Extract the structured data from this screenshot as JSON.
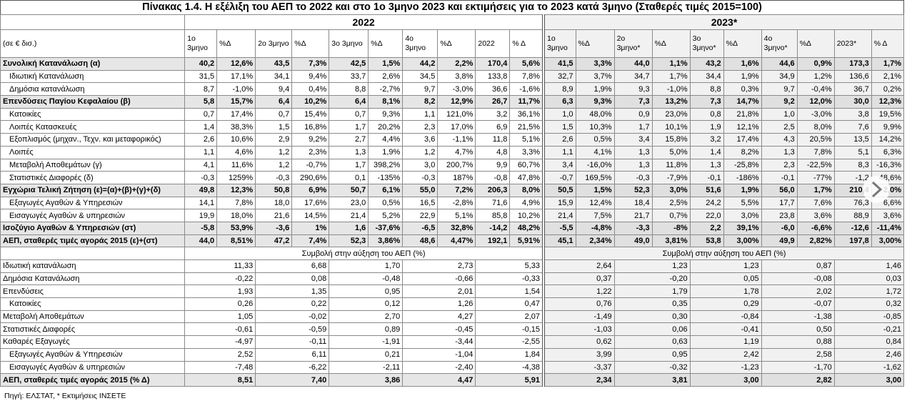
{
  "title": "Πίνακας 1.4. Η εξέλιξη του ΑΕΠ το 2022 και στο 1ο 3μηνο 2023 και εκτιμήσεις για το 2023 κατά 3μηνο (Σταθερές τιμές 2015=100)",
  "years": [
    "2022",
    "2023*"
  ],
  "unit": "(σε € δισ.)",
  "columns": [
    "1ο 3μηνο",
    "%Δ",
    "2ο 3μηνο",
    "%Δ",
    "3ο 3μηνο",
    "%Δ",
    "4ο 3μηνο",
    "%Δ",
    "2022",
    "% Δ",
    "1ο 3μηνο",
    "%Δ",
    "2ο 3μηνο*",
    "%Δ",
    "3ο 3μηνο*",
    "%Δ",
    "4ο 3μηνο*",
    "%Δ",
    "2023*",
    "% Δ"
  ],
  "rows": [
    {
      "label": "Συνολική Κατανάλωση (α)",
      "values": [
        "40,2",
        "12,6%",
        "43,5",
        "7,3%",
        "42,5",
        "1,5%",
        "44,2",
        "2,2%",
        "170,4",
        "5,6%",
        "41,5",
        "3,3%",
        "44,0",
        "1,1%",
        "43,2",
        "1,6%",
        "44,6",
        "0,9%",
        "173,3",
        "1,7%"
      ]
    },
    {
      "label": "Ιδιωτική Κατανάλωση",
      "values": [
        "31,5",
        "17,1%",
        "34,1",
        "9,4%",
        "33,7",
        "2,6%",
        "34,5",
        "3,8%",
        "133,8",
        "7,8%",
        "32,7",
        "3,7%",
        "34,7",
        "1,7%",
        "34,4",
        "1,9%",
        "34,9",
        "1,2%",
        "136,6",
        "2,1%"
      ]
    },
    {
      "label": "Δημόσια κατανάλωση",
      "values": [
        "8,7",
        "-1,0%",
        "9,4",
        "0,4%",
        "8,8",
        "-2,7%",
        "9,7",
        "-3,0%",
        "36,6",
        "-1,6%",
        "8,9",
        "1,9%",
        "9,3",
        "-1,0%",
        "8,8",
        "0,3%",
        "9,7",
        "-0,4%",
        "36,7",
        "0,2%"
      ]
    },
    {
      "label": "Επενδύσεις Παγίου Κεφαλαίου (β)",
      "values": [
        "5,8",
        "15,7%",
        "6,4",
        "10,2%",
        "6,4",
        "8,1%",
        "8,2",
        "12,9%",
        "26,7",
        "11,7%",
        "6,3",
        "9,3%",
        "7,3",
        "13,2%",
        "7,3",
        "14,7%",
        "9,2",
        "12,0%",
        "30,0",
        "12,3%"
      ]
    },
    {
      "label": "Κατοικίες",
      "values": [
        "0,7",
        "17,4%",
        "0,7",
        "15,4%",
        "0,7",
        "9,3%",
        "1,1",
        "121,0%",
        "3,2",
        "36,1%",
        "1,0",
        "48,0%",
        "0,9",
        "23,0%",
        "0,8",
        "21,8%",
        "1,0",
        "-3,0%",
        "3,8",
        "19,5%"
      ]
    },
    {
      "label": "Λοιπές Κατασκευές",
      "values": [
        "1,4",
        "38,3%",
        "1,5",
        "16,8%",
        "1,7",
        "20,2%",
        "2,3",
        "17,0%",
        "6,9",
        "21,5%",
        "1,5",
        "10,3%",
        "1,7",
        "10,1%",
        "1,9",
        "12,1%",
        "2,5",
        "8,0%",
        "7,6",
        "9,9%"
      ]
    },
    {
      "label": "Εξοπλισμός (μηχαν., Τεχν. και μεταφορικός)",
      "values": [
        "2,6",
        "10,6%",
        "2,9",
        "9,2%",
        "2,7",
        "4,4%",
        "3,6",
        "-1,1%",
        "11,8",
        "5,1%",
        "2,6",
        "0,5%",
        "3,4",
        "15,8%",
        "3,2",
        "17,4%",
        "4,3",
        "20,5%",
        "13,5",
        "14,2%"
      ]
    },
    {
      "label": "Λοιπές",
      "values": [
        "1,1",
        "4,6%",
        "1,2",
        "2,3%",
        "1,3",
        "1,9%",
        "1,2",
        "4,7%",
        "4,8",
        "3,3%",
        "1,1",
        "4,1%",
        "1,3",
        "5,0%",
        "1,4",
        "8,2%",
        "1,3",
        "7,8%",
        "5,1",
        "6,3%"
      ]
    },
    {
      "label": "Μεταβολή Αποθεμάτων (γ)",
      "values": [
        "4,1",
        "11,6%",
        "1,2",
        "-0,7%",
        "1,7",
        "398,2%",
        "3,0",
        "200,7%",
        "9,9",
        "60,7%",
        "3,4",
        "-16,0%",
        "1,3",
        "11,8%",
        "1,3",
        "-25,8%",
        "2,3",
        "-22,5%",
        "8,3",
        "-16,3%"
      ]
    },
    {
      "label": "Στατιστικές Διαφορές (δ)",
      "values": [
        "-0,3",
        "1259%",
        "-0,3",
        "290,6%",
        "0,1",
        "-135%",
        "-0,3",
        "187%",
        "-0,8",
        "47,8%",
        "-0,7",
        "169,5%",
        "-0,3",
        "-7,9%",
        "-0,1",
        "-186%",
        "-0,1",
        "-77%",
        "-1,2",
        "48,6%"
      ]
    },
    {
      "label": "Εγχώρια Τελική Ζήτηση (ε)=(α)+(β)+(γ)+(δ)",
      "values": [
        "49,8",
        "12,3%",
        "50,8",
        "6,9%",
        "50,7",
        "6,1%",
        "55,0",
        "7,2%",
        "206,3",
        "8,0%",
        "50,5",
        "1,5%",
        "52,3",
        "3,0%",
        "51,6",
        "1,9%",
        "56,0",
        "1,7%",
        "210,4",
        "2,0%"
      ]
    },
    {
      "label": "Εξαγωγές Αγαθών & Υπηρεσιών",
      "values": [
        "14,1",
        "7,8%",
        "18,0",
        "17,6%",
        "23,0",
        "0,5%",
        "16,5",
        "-2,8%",
        "71,6",
        "4,9%",
        "15,9",
        "12,4%",
        "18,4",
        "2,5%",
        "24,2",
        "5,5%",
        "17,7",
        "7,6%",
        "76,3",
        "6,6%"
      ]
    },
    {
      "label": "Εισαγωγές Αγαθών & υπηρεσιών",
      "values": [
        "19,9",
        "18,0%",
        "21,6",
        "14,5%",
        "21,4",
        "5,2%",
        "22,9",
        "5,1%",
        "85,8",
        "10,2%",
        "21,4",
        "7,5%",
        "21,7",
        "0,7%",
        "22,0",
        "3,0%",
        "23,8",
        "3,6%",
        "88,9",
        "3,6%"
      ]
    },
    {
      "label": "Ισοζύγιο Αγαθών & Υπηρεσιών (στ)",
      "values": [
        "-5,8",
        "53,9%",
        "-3,6",
        "1%",
        "1,6",
        "-37,6%",
        "-6,5",
        "32,8%",
        "-14,2",
        "48,2%",
        "-5,5",
        "-4,8%",
        "-3,3",
        "-8%",
        "2,2",
        "39,1%",
        "-6,0",
        "-6,6%",
        "-12,6",
        "-11,4%"
      ]
    },
    {
      "label": "ΑΕΠ, σταθερές τιμές αγοράς 2015 (ε)+(στ)",
      "values": [
        "44,0",
        "8,51%",
        "47,2",
        "7,4%",
        "52,3",
        "3,86%",
        "48,6",
        "4,47%",
        "192,1",
        "5,91%",
        "45,1",
        "2,34%",
        "49,0",
        "3,81%",
        "53,8",
        "3,00%",
        "49,9",
        "2,82%",
        "197,8",
        "3,00%"
      ]
    }
  ],
  "contribution_titles": [
    "Συμβολή στην αύξηση του ΑΕΠ (%)",
    "Συμβολή στην αύξηση του ΑΕΠ (%)"
  ],
  "contribution_rows": [
    {
      "label": "Ιδιωτική κατανάλωση",
      "values": [
        "11,33",
        "6,68",
        "1,70",
        "2,73",
        "5,33",
        "2,64",
        "1,23",
        "1,23",
        "0,87",
        "1,46"
      ]
    },
    {
      "label": "Δημόσια Κατανάλωση",
      "values": [
        "-0,22",
        "0,08",
        "-0,48",
        "-0,66",
        "-0,33",
        "0,37",
        "-0,20",
        "0,05",
        "-0,08",
        "0,03"
      ]
    },
    {
      "label": "Επενδύσεις",
      "values": [
        "1,93",
        "1,35",
        "0,95",
        "2,01",
        "1,54",
        "1,22",
        "1,79",
        "1,78",
        "2,02",
        "1,72"
      ]
    },
    {
      "label": "Κατοικίες",
      "values": [
        "0,26",
        "0,22",
        "0,12",
        "1,26",
        "0,47",
        "0,76",
        "0,35",
        "0,29",
        "-0,07",
        "0,32"
      ]
    },
    {
      "label": "Μεταβολή Αποθεμάτων",
      "values": [
        "1,05",
        "-0,02",
        "2,70",
        "4,27",
        "2,07",
        "-1,49",
        "0,30",
        "-0,84",
        "-1,38",
        "-0,85"
      ]
    },
    {
      "label": "Στατιστικές Διαφορές",
      "values": [
        "-0,61",
        "-0,59",
        "0,89",
        "-0,45",
        "-0,15",
        "-1,03",
        "0,06",
        "-0,41",
        "0,50",
        "-0,21"
      ]
    },
    {
      "label": "Καθαρές Εξαγωγές",
      "values": [
        "-4,97",
        "-0,11",
        "-1,91",
        "-3,44",
        "-2,55",
        "0,62",
        "0,63",
        "1,19",
        "0,88",
        "0,84"
      ]
    },
    {
      "label": "Εξαγωγές Αγαθών & Υπηρεσιών",
      "values": [
        "2,52",
        "6,11",
        "0,21",
        "-1,04",
        "1,84",
        "3,99",
        "0,95",
        "2,42",
        "2,58",
        "2,46"
      ]
    },
    {
      "label": "Εισαγωγές Αγαθών & υπηρεσιών",
      "values": [
        "-7,48",
        "-6,22",
        "-2,11",
        "-2,40",
        "-4,38",
        "-3,37",
        "-0,32",
        "-1,23",
        "-1,70",
        "-1,62"
      ]
    },
    {
      "label": "ΑΕΠ, σταθερές τιμές αγοράς 2015 (% Δ)",
      "values": [
        "8,51",
        "7,40",
        "3,86",
        "4,47",
        "5,91",
        "2,34",
        "3,81",
        "3,00",
        "2,82",
        "3,00"
      ]
    }
  ],
  "footer": "Πηγή: ΕΛΣΤΑΤ, * Εκτιμήσεις ΙΝΣΕΤΕ"
}
